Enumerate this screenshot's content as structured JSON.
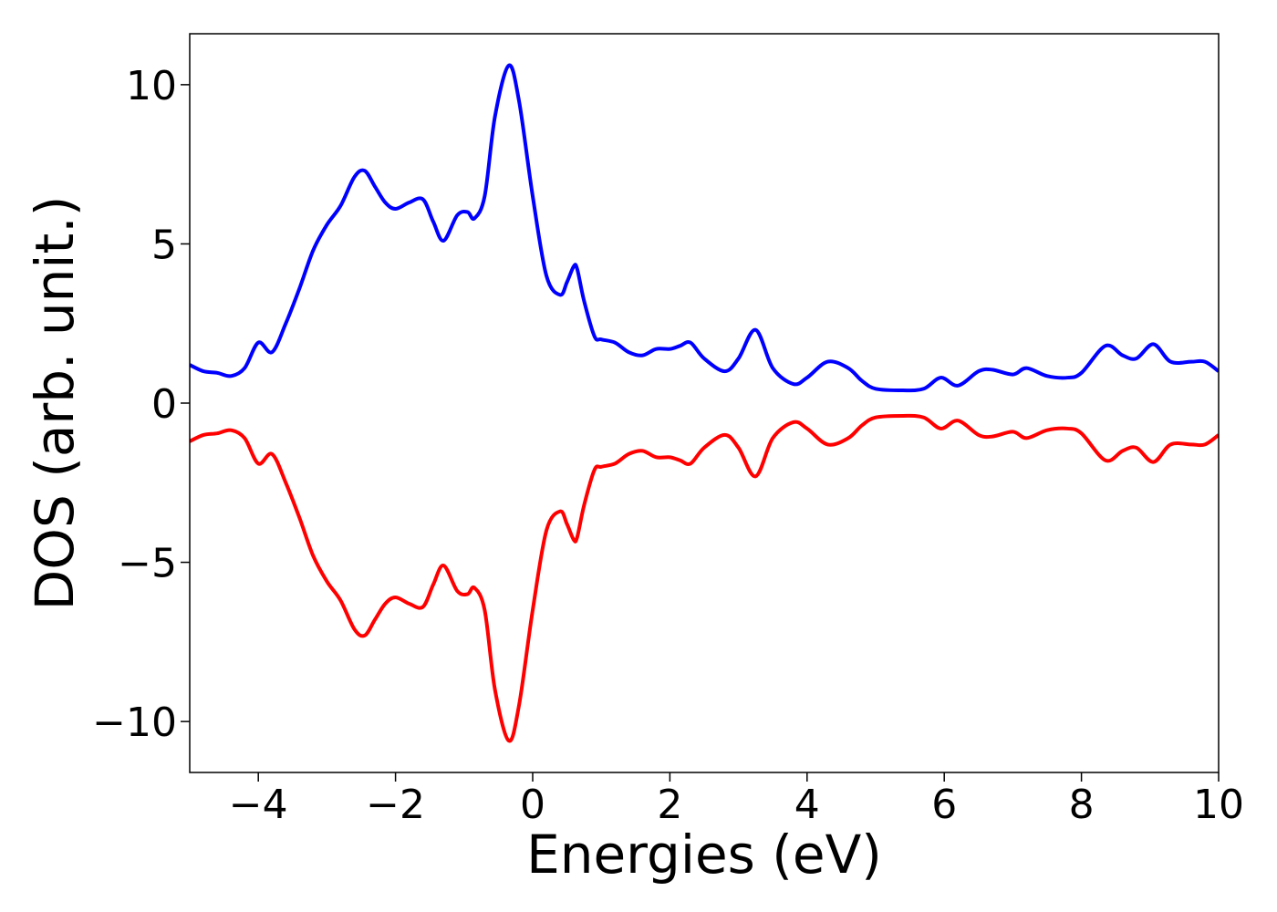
{
  "chart_data": {
    "type": "line",
    "xlabel": "Energies (eV)",
    "ylabel": "DOS (arb. unit.)",
    "xlim": [
      -5,
      10
    ],
    "ylim": [
      -11.6,
      11.6
    ],
    "grid": false,
    "x_ticks": [
      {
        "value": -4,
        "label": "−4"
      },
      {
        "value": -2,
        "label": "−2"
      },
      {
        "value": 0,
        "label": "0"
      },
      {
        "value": 2,
        "label": "2"
      },
      {
        "value": 4,
        "label": "4"
      },
      {
        "value": 6,
        "label": "6"
      },
      {
        "value": 8,
        "label": "8"
      },
      {
        "value": 10,
        "label": "10"
      }
    ],
    "y_ticks": [
      {
        "value": -10,
        "label": "−10"
      },
      {
        "value": -5,
        "label": "−5"
      },
      {
        "value": 0,
        "label": "0"
      },
      {
        "value": 5,
        "label": "5"
      },
      {
        "value": 10,
        "label": "10"
      }
    ],
    "series": [
      {
        "color": "#0000ff",
        "x": [
          -5.0,
          -4.8,
          -4.6,
          -4.4,
          -4.2,
          -4.0,
          -3.8,
          -3.6,
          -3.4,
          -3.2,
          -3.0,
          -2.8,
          -2.6,
          -2.45,
          -2.3,
          -2.15,
          -2.0,
          -1.8,
          -1.6,
          -1.45,
          -1.3,
          -1.1,
          -0.95,
          -0.85,
          -0.7,
          -0.55,
          -0.35,
          -0.2,
          0.0,
          0.2,
          0.4,
          0.5,
          0.6,
          0.65,
          0.75,
          0.9,
          1.0,
          1.2,
          1.4,
          1.6,
          1.8,
          2.0,
          2.15,
          2.3,
          2.5,
          2.8,
          3.0,
          3.25,
          3.5,
          3.8,
          4.0,
          4.3,
          4.6,
          4.8,
          5.0,
          5.4,
          5.7,
          5.95,
          6.2,
          6.5,
          6.7,
          7.0,
          7.2,
          7.5,
          7.8,
          8.0,
          8.35,
          8.6,
          8.8,
          9.05,
          9.3,
          9.6,
          9.8,
          10.0
        ],
        "y": [
          1.2,
          1.0,
          0.95,
          0.85,
          1.1,
          1.9,
          1.6,
          2.5,
          3.6,
          4.8,
          5.6,
          6.2,
          7.1,
          7.3,
          6.8,
          6.3,
          6.1,
          6.3,
          6.4,
          5.7,
          5.1,
          5.9,
          6.0,
          5.8,
          6.5,
          9.0,
          10.6,
          9.5,
          6.5,
          4.0,
          3.4,
          3.8,
          4.3,
          4.2,
          3.2,
          2.1,
          2.0,
          1.9,
          1.6,
          1.5,
          1.7,
          1.7,
          1.8,
          1.9,
          1.4,
          1.0,
          1.4,
          2.3,
          1.1,
          0.6,
          0.8,
          1.3,
          1.1,
          0.7,
          0.45,
          0.4,
          0.45,
          0.8,
          0.55,
          1.0,
          1.05,
          0.9,
          1.1,
          0.85,
          0.8,
          0.95,
          1.8,
          1.5,
          1.4,
          1.85,
          1.3,
          1.3,
          1.3,
          1.0
        ]
      },
      {
        "color": "#ff0000",
        "x": [
          -5.0,
          -4.8,
          -4.6,
          -4.4,
          -4.2,
          -4.0,
          -3.8,
          -3.6,
          -3.4,
          -3.2,
          -3.0,
          -2.8,
          -2.6,
          -2.45,
          -2.3,
          -2.15,
          -2.0,
          -1.8,
          -1.6,
          -1.45,
          -1.3,
          -1.1,
          -0.95,
          -0.85,
          -0.7,
          -0.55,
          -0.35,
          -0.2,
          0.0,
          0.2,
          0.4,
          0.5,
          0.6,
          0.65,
          0.75,
          0.9,
          1.0,
          1.2,
          1.4,
          1.6,
          1.8,
          2.0,
          2.15,
          2.3,
          2.5,
          2.8,
          3.0,
          3.25,
          3.5,
          3.8,
          4.0,
          4.3,
          4.6,
          4.8,
          5.0,
          5.4,
          5.7,
          5.95,
          6.2,
          6.5,
          6.7,
          7.0,
          7.2,
          7.5,
          7.8,
          8.0,
          8.35,
          8.6,
          8.8,
          9.05,
          9.3,
          9.6,
          9.8,
          10.0
        ],
        "y": [
          -1.2,
          -1.0,
          -0.95,
          -0.85,
          -1.1,
          -1.9,
          -1.6,
          -2.5,
          -3.6,
          -4.8,
          -5.6,
          -6.2,
          -7.1,
          -7.3,
          -6.8,
          -6.3,
          -6.1,
          -6.3,
          -6.4,
          -5.7,
          -5.1,
          -5.9,
          -6.0,
          -5.8,
          -6.5,
          -9.0,
          -10.6,
          -9.5,
          -6.5,
          -4.0,
          -3.4,
          -3.8,
          -4.3,
          -4.2,
          -3.2,
          -2.1,
          -2.0,
          -1.9,
          -1.6,
          -1.5,
          -1.7,
          -1.7,
          -1.8,
          -1.9,
          -1.4,
          -1.0,
          -1.4,
          -2.3,
          -1.1,
          -0.6,
          -0.8,
          -1.3,
          -1.1,
          -0.7,
          -0.45,
          -0.4,
          -0.45,
          -0.8,
          -0.55,
          -1.0,
          -1.05,
          -0.9,
          -1.1,
          -0.85,
          -0.8,
          -0.95,
          -1.8,
          -1.5,
          -1.4,
          -1.85,
          -1.3,
          -1.3,
          -1.3,
          -1.0
        ]
      }
    ]
  }
}
